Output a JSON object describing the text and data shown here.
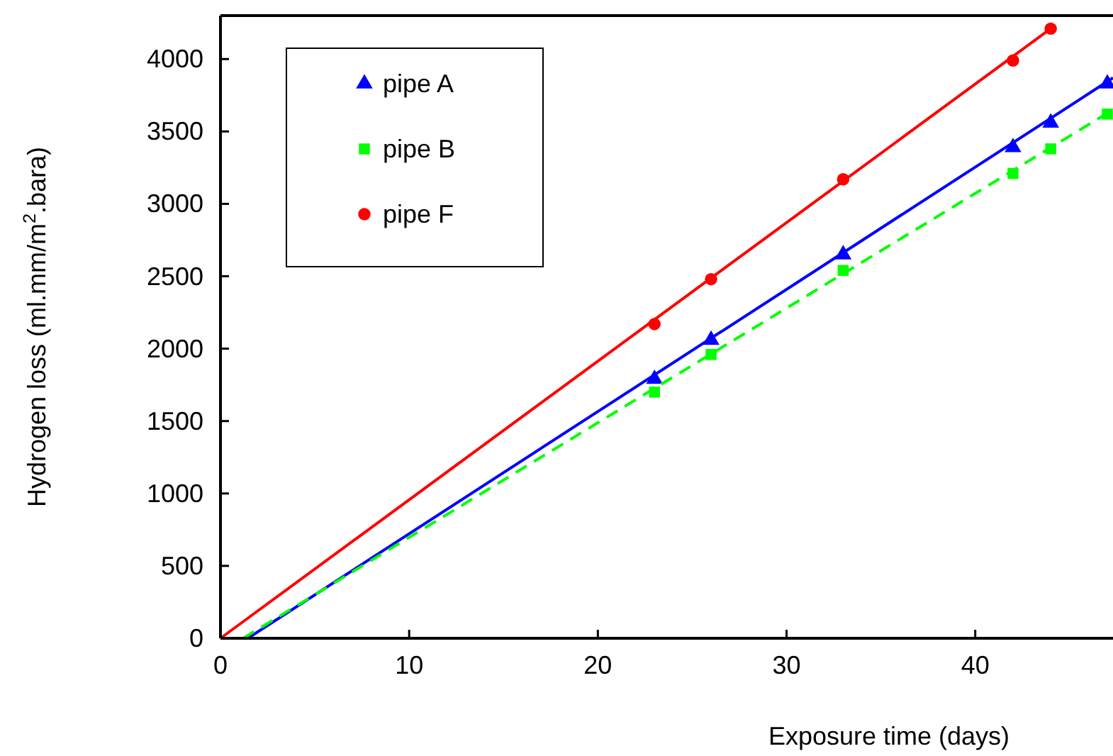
{
  "chart_data": {
    "type": "scatter",
    "xlabel": "Exposure time (days)",
    "ylabel": "Hydrogen loss (ml.mm/m$^{2}$.bara)",
    "xlim": [
      0,
      47.3
    ],
    "ylim": [
      0,
      4300
    ],
    "xticks": [
      0,
      10,
      20,
      30,
      40
    ],
    "yticks": [
      0,
      500,
      1000,
      1500,
      2000,
      2500,
      3000,
      3500,
      4000
    ],
    "grid": false,
    "legend": "top left",
    "series": [
      {
        "name": "pipe A",
        "color": "#0000ff",
        "marker": "triangle",
        "x": [
          23,
          26,
          33,
          42,
          44,
          47
        ],
        "values": [
          1790,
          2060,
          2650,
          3390,
          3560,
          3830
        ]
      },
      {
        "name": "pipe B",
        "color": "#00ff00",
        "marker": "square",
        "x": [
          23,
          26,
          33,
          42,
          44,
          47
        ],
        "values": [
          1700,
          1960,
          2540,
          3210,
          3380,
          3620
        ]
      },
      {
        "name": "pipe F",
        "color": "#ff0000",
        "marker": "circle",
        "x": [
          23,
          26,
          33,
          42,
          44
        ],
        "values": [
          2170,
          2480,
          3170,
          3990,
          4210
        ]
      },
      {
        "type": "line",
        "color": "#0000ff",
        "line_style": "solid",
        "x": [
          1.45,
          47.3
        ],
        "values": [
          0,
          3870
        ]
      },
      {
        "type": "line",
        "color": "#00ff00",
        "line_style": "dashed",
        "x": [
          1.2,
          47.3
        ],
        "values": [
          0,
          3650
        ]
      },
      {
        "type": "line",
        "color": "#ff0000",
        "line_style": "solid",
        "x": [
          0,
          44
        ],
        "values": [
          0,
          4210
        ]
      }
    ]
  }
}
